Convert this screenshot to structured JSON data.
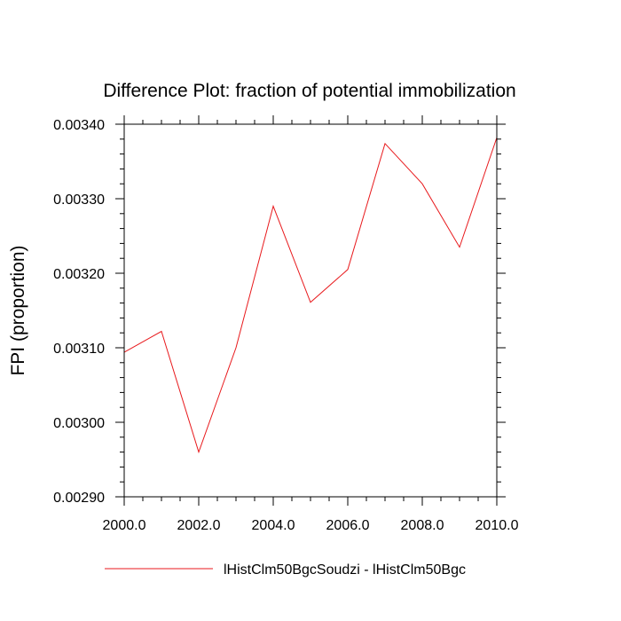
{
  "chart_data": {
    "type": "line",
    "title": "Difference Plot: fraction of potential immobilization",
    "xlabel": "",
    "ylabel": "FPI  (proportion)",
    "xlim": [
      2000,
      2010
    ],
    "ylim": [
      0.0029,
      0.0034
    ],
    "x_major_ticks": [
      2000,
      2002,
      2004,
      2006,
      2008,
      2010
    ],
    "x_tick_labels": [
      "2000.0",
      "2002.0",
      "2004.0",
      "2006.0",
      "2008.0",
      "2010.0"
    ],
    "y_major_ticks": [
      0.0029,
      0.003,
      0.0031,
      0.0032,
      0.0033,
      0.0034
    ],
    "y_tick_labels": [
      "0.00290",
      "0.00300",
      "0.00310",
      "0.00320",
      "0.00330",
      "0.00340"
    ],
    "grid": false,
    "legend_position": "bottom",
    "series": [
      {
        "name": "lHistClm50BgcSoudzi - lHistClm50Bgc",
        "color": "#e8191c",
        "x": [
          2000,
          2001,
          2002,
          2003,
          2004,
          2005,
          2006,
          2007,
          2008,
          2009,
          2010
        ],
        "values": [
          0.003094,
          0.003122,
          0.00296,
          0.0031,
          0.00329,
          0.003161,
          0.003205,
          0.003374,
          0.00332,
          0.003235,
          0.003382
        ]
      }
    ]
  }
}
